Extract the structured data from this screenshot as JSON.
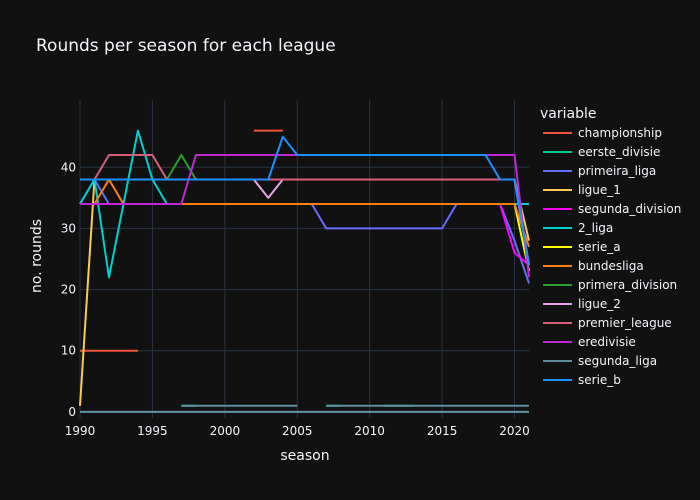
{
  "chart_data": {
    "type": "line",
    "title": "Rounds per season for each league",
    "xlabel": "season",
    "ylabel": "no. rounds",
    "xlim": [
      1990,
      2021
    ],
    "ylim": [
      -1,
      51
    ],
    "x_ticks": [
      1990,
      1995,
      2000,
      2005,
      2010,
      2015,
      2020
    ],
    "y_ticks": [
      0,
      10,
      20,
      30,
      40
    ],
    "grid": true,
    "legend_title": "variable",
    "legend_position": "right",
    "series": [
      {
        "name": "championship",
        "color": "#EF553B",
        "segments": [
          [
            [
              1990,
              10
            ],
            [
              1994,
              10
            ]
          ],
          [
            [
              2002,
              46
            ],
            [
              2004,
              46
            ]
          ]
        ]
      },
      {
        "name": "eerste_divisie",
        "color": "#00CC96",
        "segments": [
          [
            [
              1997,
              1
            ],
            [
              1998,
              1
            ]
          ],
          [
            [
              2007,
              1
            ],
            [
              2008,
              1
            ]
          ],
          [
            [
              2011,
              1
            ],
            [
              2013,
              1
            ]
          ]
        ]
      },
      {
        "name": "primeira_liga",
        "color": "#636EFA",
        "segments": [
          [
            [
              1990,
              34
            ],
            [
              1991,
              38
            ],
            [
              1992,
              34
            ],
            [
              2006,
              34
            ],
            [
              2007,
              30
            ],
            [
              2015,
              30
            ],
            [
              2016,
              34
            ],
            [
              2019,
              34
            ],
            [
              2020,
              28
            ],
            [
              2021,
              21
            ]
          ]
        ]
      },
      {
        "name": "ligue_1",
        "color": "#FECB52",
        "segments": [
          [
            [
              1990,
              1
            ],
            [
              1991,
              38
            ],
            [
              2020,
              38
            ],
            [
              2021,
              28
            ]
          ]
        ]
      },
      {
        "name": "segunda_division",
        "color": "#FF00FF",
        "segments": [
          [
            [
              1990,
              34
            ],
            [
              2019,
              34
            ],
            [
              2020,
              26
            ],
            [
              2021,
              24
            ]
          ]
        ]
      },
      {
        "name": "2_liga",
        "color": "#00CED1",
        "segments": [
          [
            [
              1990,
              34
            ],
            [
              1991,
              38
            ],
            [
              1992,
              22
            ],
            [
              1993,
              34
            ],
            [
              1994,
              46
            ],
            [
              1995,
              38
            ],
            [
              1996,
              34
            ],
            [
              2021,
              34
            ]
          ]
        ]
      },
      {
        "name": "serie_a",
        "color": "#FFFF00",
        "segments": [
          [
            [
              1990,
              34
            ],
            [
              2020,
              34
            ],
            [
              2021,
              23
            ]
          ]
        ]
      },
      {
        "name": "bundesliga",
        "color": "#FF7F0E",
        "segments": [
          [
            [
              1990,
              34
            ],
            [
              1991,
              34
            ],
            [
              1992,
              38
            ],
            [
              1993,
              34
            ],
            [
              2020,
              34
            ],
            [
              2021,
              27
            ]
          ]
        ]
      },
      {
        "name": "primera_division",
        "color": "#2CA02C",
        "segments": [
          [
            [
              1990,
              38
            ],
            [
              1996,
              38
            ],
            [
              1997,
              42
            ],
            [
              1998,
              38
            ],
            [
              2020,
              38
            ],
            [
              2021,
              24
            ]
          ]
        ]
      },
      {
        "name": "ligue_2",
        "color": "#E7A3E7",
        "segments": [
          [
            [
              1990,
              38
            ],
            [
              2002,
              38
            ],
            [
              2003,
              35
            ],
            [
              2004,
              38
            ],
            [
              2020,
              38
            ],
            [
              2021,
              24
            ]
          ]
        ]
      },
      {
        "name": "premier_league",
        "color": "#D65F7C",
        "segments": [
          [
            [
              1990,
              38
            ],
            [
              1991,
              38
            ],
            [
              1992,
              42
            ],
            [
              1995,
              42
            ],
            [
              1996,
              38
            ],
            [
              2020,
              38
            ],
            [
              2021,
              24
            ]
          ]
        ]
      },
      {
        "name": "eredivisie",
        "color": "#C026D3",
        "segments": [
          [
            [
              1990,
              34
            ],
            [
              1997,
              34
            ],
            [
              1998,
              42
            ],
            [
              2020,
              42
            ],
            [
              2021,
              22
            ]
          ]
        ]
      },
      {
        "name": "segunda_liga",
        "color": "#5F8EA0",
        "segments": [
          [
            [
              1990,
              0
            ],
            [
              2021,
              0
            ]
          ],
          [
            [
              1997,
              1
            ],
            [
              2005,
              1
            ]
          ],
          [
            [
              2007,
              1
            ],
            [
              2021,
              1
            ]
          ]
        ]
      },
      {
        "name": "serie_b",
        "color": "#1E90FF",
        "segments": [
          [
            [
              1990,
              38
            ],
            [
              2002,
              38
            ],
            [
              2003,
              38
            ],
            [
              2004,
              45
            ],
            [
              2005,
              42
            ],
            [
              2018,
              42
            ],
            [
              2019,
              38
            ],
            [
              2020,
              38
            ],
            [
              2021,
              24
            ]
          ]
        ]
      }
    ]
  }
}
